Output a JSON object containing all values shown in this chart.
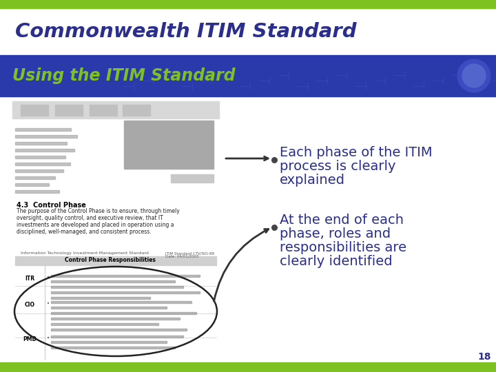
{
  "title": "Commonwealth ITIM Standard",
  "subtitle": "Using the ITIM Standard",
  "bullet1_line1": "Each phase of the ITIM",
  "bullet1_line2": "process is clearly",
  "bullet1_line3": "explained",
  "bullet2_line1": "At the end of each",
  "bullet2_line2": "phase, roles and",
  "bullet2_line3": "responsibilities are",
  "bullet2_line4": "clearly identified",
  "title_color": "#2B2E8C",
  "subtitle_color": "#7DC221",
  "bullet_color": "#2B2E8C",
  "bg_color": "#FFFFFF",
  "top_green_color": "#7DC221",
  "blue_banner_color": "#2B3AAA",
  "page_number": "18",
  "bottom_green_color": "#7DC221"
}
